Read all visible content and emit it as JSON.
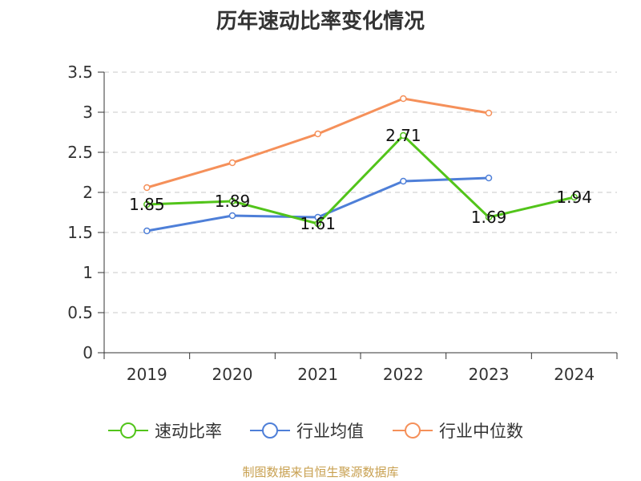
{
  "chart_data": {
    "type": "line",
    "title": "历年速动比率变化情况",
    "categories": [
      "2019",
      "2020",
      "2021",
      "2022",
      "2023",
      "2024"
    ],
    "ylim": [
      0,
      3.5
    ],
    "yticks": [
      "0",
      "0.5",
      "1",
      "1.5",
      "2",
      "2.5",
      "3",
      "3.5"
    ],
    "grid": true,
    "legend_position": "bottom",
    "series": [
      {
        "name": "速动比率",
        "color": "#52c41a",
        "values": [
          1.85,
          1.89,
          1.61,
          2.71,
          1.69,
          1.94
        ],
        "labels": [
          "1.85",
          "1.89",
          "1.61",
          "2.71",
          "1.69",
          "1.94"
        ]
      },
      {
        "name": "行业均值",
        "color": "#4e7fd8",
        "values": [
          1.52,
          1.71,
          1.69,
          2.14,
          2.18,
          null
        ]
      },
      {
        "name": "行业中位数",
        "color": "#f5905a",
        "values": [
          2.06,
          2.37,
          2.73,
          3.17,
          2.99,
          null
        ]
      }
    ]
  },
  "source": "制图数据来自恒生聚源数据库"
}
